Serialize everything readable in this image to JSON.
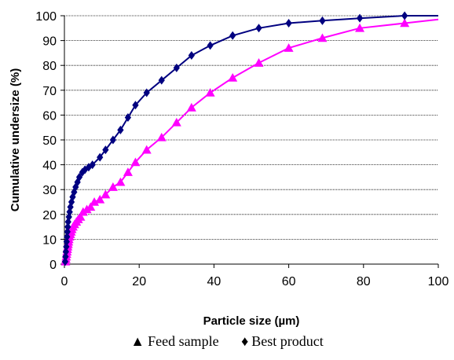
{
  "chart_data": {
    "type": "line",
    "title": "",
    "xlabel": "Particle size (µm)",
    "ylabel": "Cumulative undersize (%)",
    "xlim": [
      0,
      100
    ],
    "ylim": [
      0,
      100
    ],
    "x_ticks": [
      0,
      20,
      40,
      60,
      80,
      100
    ],
    "y_ticks": [
      0,
      10,
      20,
      30,
      40,
      50,
      60,
      70,
      80,
      90,
      100
    ],
    "grid": "horizontal dotted",
    "legend_position": "bottom",
    "series": [
      {
        "name": "Feed sample",
        "marker": "triangle",
        "color": "#ff00ff",
        "points": [
          [
            0.3,
            1
          ],
          [
            0.4,
            2
          ],
          [
            0.5,
            3
          ],
          [
            0.6,
            4
          ],
          [
            0.7,
            5
          ],
          [
            0.8,
            6
          ],
          [
            0.9,
            7
          ],
          [
            1.0,
            8
          ],
          [
            1.1,
            9
          ],
          [
            1.2,
            10
          ],
          [
            1.4,
            11
          ],
          [
            1.6,
            12
          ],
          [
            1.8,
            13
          ],
          [
            2.0,
            14
          ],
          [
            2.3,
            15
          ],
          [
            2.7,
            16
          ],
          [
            3.2,
            17
          ],
          [
            3.7,
            18
          ],
          [
            4.3,
            19
          ],
          [
            5.0,
            21
          ],
          [
            6.0,
            22
          ],
          [
            7.0,
            23
          ],
          [
            8.0,
            25
          ],
          [
            9.5,
            26
          ],
          [
            11,
            28
          ],
          [
            13,
            31
          ],
          [
            15,
            33
          ],
          [
            17,
            37
          ],
          [
            19,
            41
          ],
          [
            22,
            46
          ],
          [
            26,
            51
          ],
          [
            30,
            57
          ],
          [
            34,
            63
          ],
          [
            39,
            69
          ],
          [
            45,
            75
          ],
          [
            52,
            81
          ],
          [
            60,
            87
          ],
          [
            69,
            91
          ],
          [
            79,
            95
          ],
          [
            91,
            97
          ]
        ],
        "line_end": [
          100,
          98.5
        ]
      },
      {
        "name": "Best product",
        "marker": "diamond",
        "color": "#000080",
        "points": [
          [
            0.2,
            1
          ],
          [
            0.3,
            3
          ],
          [
            0.4,
            5
          ],
          [
            0.5,
            7
          ],
          [
            0.6,
            9
          ],
          [
            0.7,
            11
          ],
          [
            0.8,
            13
          ],
          [
            0.9,
            15
          ],
          [
            1.0,
            17
          ],
          [
            1.2,
            19
          ],
          [
            1.4,
            21
          ],
          [
            1.6,
            23
          ],
          [
            1.9,
            25
          ],
          [
            2.2,
            27
          ],
          [
            2.6,
            29
          ],
          [
            3.0,
            31
          ],
          [
            3.5,
            33
          ],
          [
            4.0,
            35
          ],
          [
            4.8,
            37
          ],
          [
            5.5,
            38
          ],
          [
            6.5,
            39
          ],
          [
            7.5,
            40
          ],
          [
            9.5,
            43
          ],
          [
            11,
            46
          ],
          [
            13,
            50
          ],
          [
            15,
            54
          ],
          [
            17,
            59
          ],
          [
            19,
            64
          ],
          [
            22,
            69
          ],
          [
            26,
            74
          ],
          [
            30,
            79
          ],
          [
            34,
            84
          ],
          [
            39,
            88
          ],
          [
            45,
            92
          ],
          [
            52,
            95
          ],
          [
            60,
            97
          ],
          [
            69,
            98
          ],
          [
            79,
            99
          ],
          [
            91,
            100
          ]
        ],
        "line_end": [
          100,
          100
        ]
      }
    ]
  },
  "legend": {
    "items": [
      {
        "marker": "▲",
        "label": "Feed sample"
      },
      {
        "marker": "♦",
        "label": "Best product"
      }
    ]
  }
}
